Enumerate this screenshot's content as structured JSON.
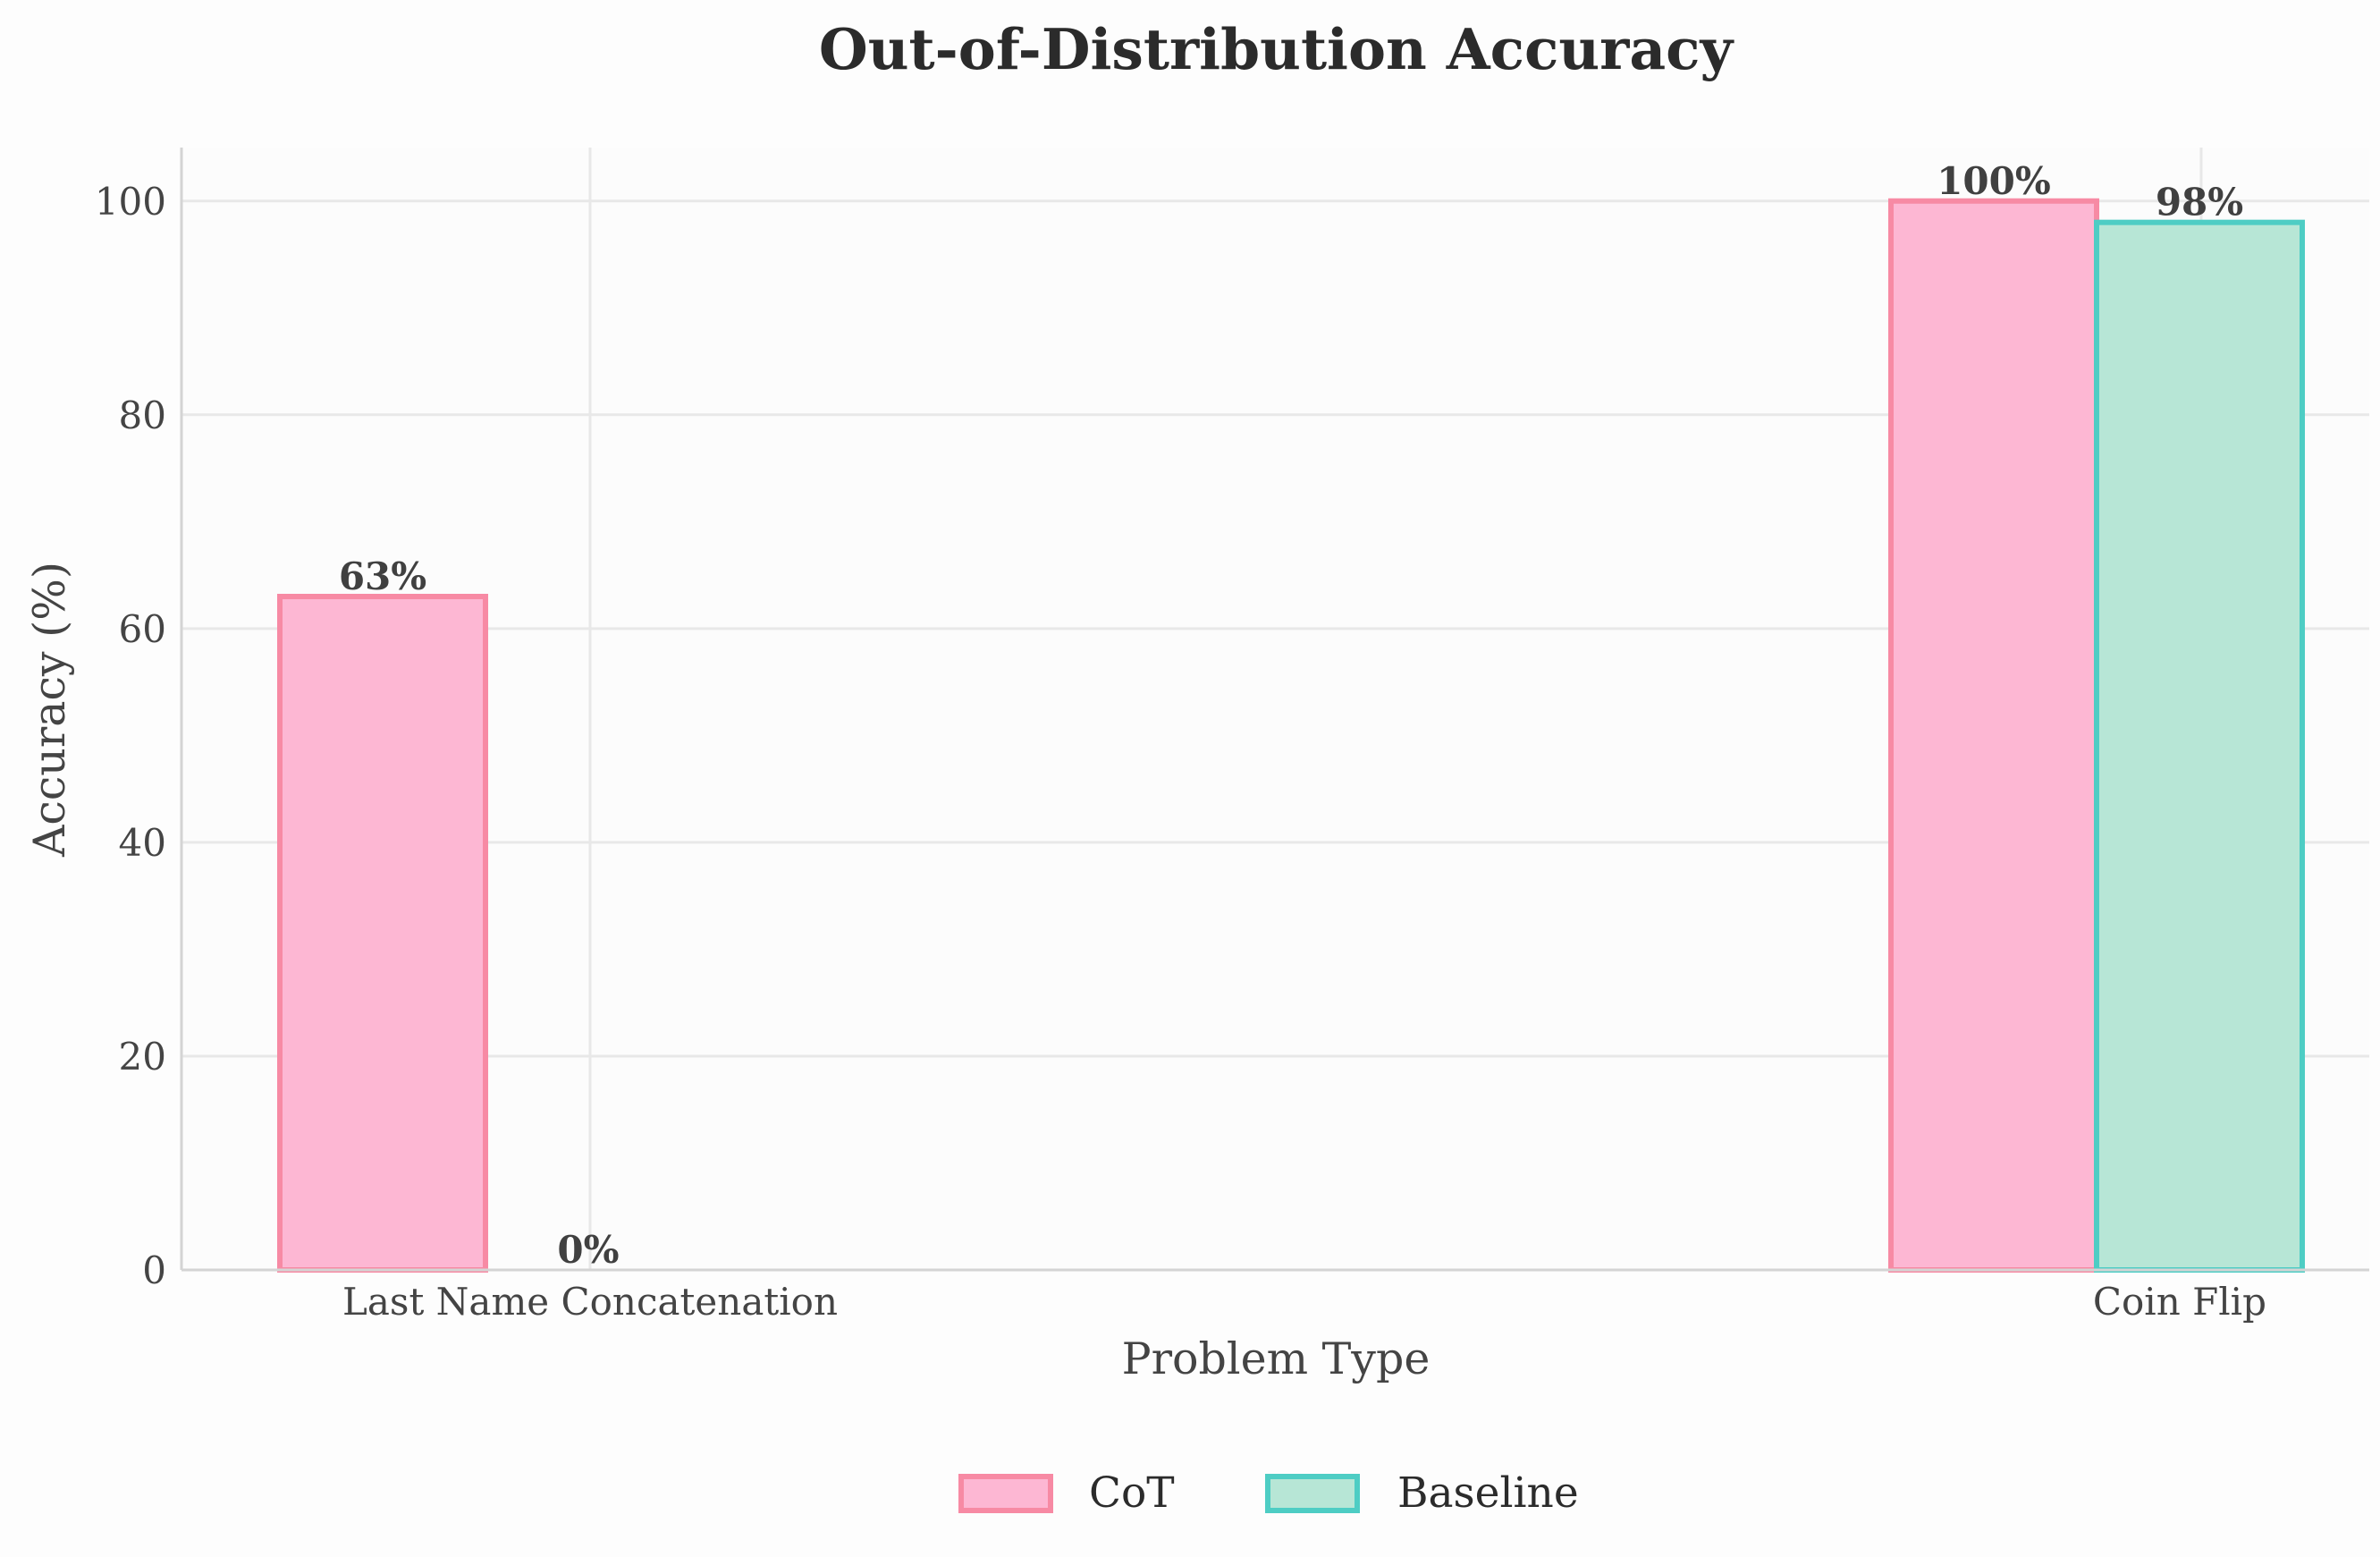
{
  "chart_data": {
    "type": "bar",
    "title": "Out-of-Distribution Accuracy",
    "xlabel": "Problem Type",
    "ylabel": "Accuracy (%)",
    "categories": [
      "Last Name Concatenation",
      "Coin Flip"
    ],
    "series": [
      {
        "name": "CoT",
        "values": [
          63,
          100
        ],
        "labels": [
          "63%",
          "100%"
        ],
        "fill": "#fdb7d3",
        "stroke": "#f78aa4"
      },
      {
        "name": "Baseline",
        "values": [
          0,
          98
        ],
        "labels": [
          "0%",
          "98%"
        ],
        "fill": "#b7e6d6",
        "stroke": "#4ecdc4"
      }
    ],
    "ylim": [
      0,
      105
    ],
    "yticks": [
      0,
      20,
      40,
      60,
      80,
      100
    ],
    "ytick_labels": [
      "0",
      "20",
      "40",
      "60",
      "80",
      "100"
    ],
    "grid": true,
    "legend_position": "bottom-center"
  }
}
